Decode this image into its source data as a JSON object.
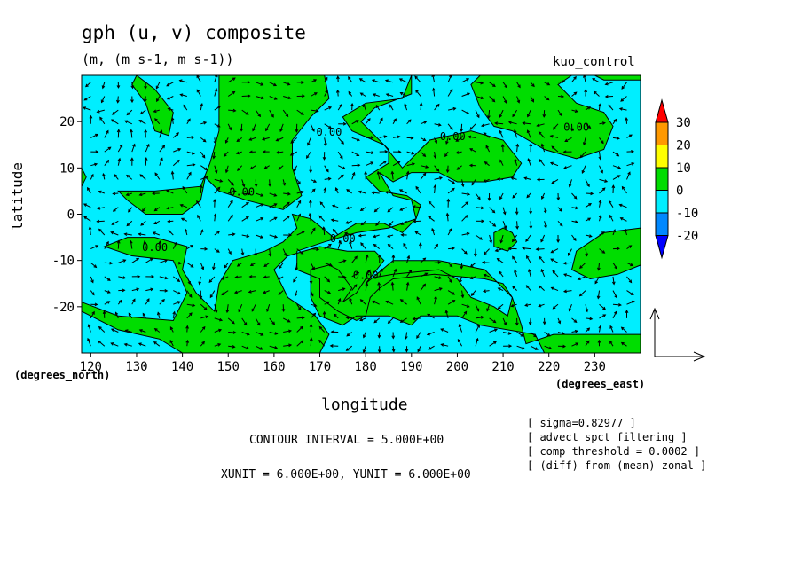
{
  "title": "gph (u, v) composite",
  "subtitle": "(m, (m s-1, m s-1))",
  "run_label": "kuo_control",
  "xlabel": "longitude",
  "ylabel": "latitude",
  "x_unit_label": "(degrees_east)",
  "y_unit_label": "(degrees_north)",
  "contour_interval": "CONTOUR INTERVAL = 5.000E+00",
  "vector_units": "XUNIT = 6.000E+00, YUNIT = 6.000E+00",
  "notes": [
    "[ sigma=0.82977 ]",
    "[ advect spct filtering ]",
    "[ comp threshold = 0.0002 ]",
    "[ (diff) from (mean) zonal ]"
  ],
  "colors": {
    "positive_0_10": "#00dd00",
    "negative_-10_0": "#00eeff",
    "negative_-20_-10": "#0088ff",
    "negative_below_-20": "#0000ff",
    "positive_10_20": "#ffff00",
    "positive_20_30": "#ff9900",
    "positive_above_30": "#ff0000"
  },
  "chart_data": {
    "type": "heatmap",
    "subtype": "filled contour with wind vectors",
    "xlim": [
      118,
      240
    ],
    "ylim": [
      -30,
      30
    ],
    "xticks": [
      120,
      130,
      140,
      150,
      160,
      170,
      180,
      190,
      200,
      210,
      220,
      230
    ],
    "yticks": [
      -20,
      -10,
      0,
      10,
      20
    ],
    "contour_levels": [
      -20,
      -10,
      0,
      10,
      20,
      30
    ],
    "contour_labels": [
      {
        "text": "0.00",
        "x": 172,
        "y": 17
      },
      {
        "text": "0.00",
        "x": 199,
        "y": 16
      },
      {
        "text": "0.00",
        "x": 226,
        "y": 18
      },
      {
        "text": "0.00",
        "x": 153,
        "y": 4
      },
      {
        "text": "0.00",
        "x": 134,
        "y": -8
      },
      {
        "text": "0.00",
        "x": 175,
        "y": -6
      },
      {
        "text": "0.00",
        "x": 180,
        "y": -14
      }
    ],
    "colorbar": {
      "labels": [
        "30",
        "20",
        "10",
        "0",
        "-10",
        "-20"
      ],
      "colors": [
        "#ff0000",
        "#ff9900",
        "#ffff00",
        "#00dd00",
        "#00eeff",
        "#0088ff",
        "#0000ff"
      ]
    },
    "positive_regions": [
      [
        [
          130,
          30
        ],
        [
          134,
          27
        ],
        [
          138,
          22
        ],
        [
          137,
          17
        ],
        [
          134,
          18
        ],
        [
          132,
          24
        ],
        [
          129,
          28
        ]
      ],
      [
        [
          118,
          10
        ],
        [
          119,
          8
        ],
        [
          118,
          6
        ]
      ],
      [
        [
          148,
          30
        ],
        [
          171,
          30
        ],
        [
          172,
          25
        ],
        [
          168,
          21
        ],
        [
          164,
          16
        ],
        [
          164,
          10
        ],
        [
          166,
          4
        ],
        [
          162,
          1
        ],
        [
          154,
          3
        ],
        [
          148,
          5
        ],
        [
          145,
          8
        ],
        [
          144,
          3
        ],
        [
          140,
          0
        ],
        [
          132,
          0
        ],
        [
          128,
          3
        ],
        [
          126,
          5
        ],
        [
          134,
          5
        ],
        [
          144,
          6
        ],
        [
          146,
          11
        ],
        [
          148,
          18
        ],
        [
          148,
          24
        ]
      ],
      [
        [
          171,
          30
        ],
        [
          190,
          30
        ],
        [
          188,
          25
        ],
        [
          180,
          24
        ],
        [
          175,
          21
        ],
        [
          177,
          18
        ],
        [
          184,
          15
        ],
        [
          188,
          10
        ],
        [
          194,
          16
        ],
        [
          203,
          18
        ],
        [
          210,
          16
        ],
        [
          214,
          11
        ],
        [
          212,
          8
        ],
        [
          206,
          7
        ],
        [
          200,
          7
        ],
        [
          196,
          9
        ],
        [
          190,
          9
        ],
        [
          186,
          7
        ],
        [
          183,
          9
        ],
        [
          186,
          4
        ],
        [
          190,
          3
        ],
        [
          191,
          -1
        ],
        [
          188,
          -4
        ],
        [
          184,
          -2
        ],
        [
          178,
          -2
        ],
        [
          173,
          -5
        ],
        [
          168,
          -1
        ],
        [
          164,
          0
        ],
        [
          165,
          -3
        ],
        [
          162,
          -6
        ],
        [
          158,
          -8
        ],
        [
          151,
          -10
        ],
        [
          148,
          -15
        ],
        [
          147,
          -21
        ],
        [
          143,
          -17
        ],
        [
          140,
          -12
        ],
        [
          141,
          -7
        ],
        [
          134,
          -5
        ],
        [
          128,
          -5
        ],
        [
          123,
          -7
        ],
        [
          129,
          -9
        ],
        [
          138,
          -10
        ],
        [
          141,
          -17
        ],
        [
          138,
          -23
        ],
        [
          126,
          -22
        ],
        [
          118,
          -19
        ],
        [
          118,
          -21
        ],
        [
          126,
          -25
        ],
        [
          135,
          -27
        ],
        [
          140,
          -30
        ],
        [
          170,
          -30
        ],
        [
          172,
          -26
        ],
        [
          169,
          -22
        ],
        [
          163,
          -18
        ],
        [
          160,
          -12
        ],
        [
          163,
          -9
        ],
        [
          170,
          -7
        ],
        [
          176,
          -8
        ],
        [
          182,
          -8
        ],
        [
          184,
          -10
        ],
        [
          180,
          -15
        ],
        [
          186,
          -10
        ],
        [
          196,
          -10
        ],
        [
          206,
          -12
        ],
        [
          212,
          -18
        ],
        [
          214,
          -24
        ],
        [
          215,
          -28
        ],
        [
          221,
          -26
        ],
        [
          225,
          -26
        ],
        [
          240,
          -26
        ],
        [
          240,
          -30
        ],
        [
          219,
          -30
        ],
        [
          217,
          -26
        ],
        [
          205,
          -24
        ],
        [
          200,
          -22
        ],
        [
          192,
          -22
        ],
        [
          190,
          -24
        ],
        [
          185,
          -22
        ],
        [
          178,
          -22
        ],
        [
          175,
          -24
        ],
        [
          170,
          -22
        ],
        [
          168,
          -18
        ],
        [
          168,
          -12
        ],
        [
          172,
          -11
        ],
        [
          174,
          -12
        ],
        [
          177,
          -16
        ],
        [
          175,
          -19
        ],
        [
          178,
          -17
        ],
        [
          180,
          -14
        ],
        [
          186,
          -13
        ],
        [
          196,
          -12
        ],
        [
          200,
          -14
        ],
        [
          203,
          -18
        ],
        [
          208,
          -20
        ],
        [
          211,
          -22
        ],
        [
          212,
          -18
        ],
        [
          210,
          -15
        ],
        [
          206,
          -14
        ],
        [
          195,
          -13
        ],
        [
          186,
          -14
        ],
        [
          183,
          -16
        ],
        [
          181,
          -18
        ],
        [
          180,
          -22
        ],
        [
          178,
          -23
        ],
        [
          174,
          -21
        ],
        [
          170,
          -18
        ],
        [
          170,
          -14
        ],
        [
          165,
          -12
        ],
        [
          165,
          -8
        ],
        [
          171,
          -6
        ],
        [
          178,
          -4
        ],
        [
          185,
          -3
        ],
        [
          191,
          -1
        ],
        [
          192,
          2
        ],
        [
          189,
          4
        ],
        [
          183,
          5
        ],
        [
          180,
          8
        ],
        [
          185,
          11
        ],
        [
          185,
          14
        ],
        [
          182,
          17
        ],
        [
          179,
          20
        ],
        [
          182,
          23
        ],
        [
          190,
          26
        ],
        [
          190,
          30
        ]
      ],
      [
        [
          205,
          30
        ],
        [
          230,
          30
        ],
        [
          232,
          29
        ],
        [
          240,
          29
        ],
        [
          240,
          30
        ],
        [
          225,
          30
        ],
        [
          222,
          28
        ],
        [
          226,
          24
        ],
        [
          232,
          22
        ],
        [
          234,
          19
        ],
        [
          232,
          14
        ],
        [
          226,
          12
        ],
        [
          219,
          14
        ],
        [
          212,
          18
        ],
        [
          208,
          19
        ],
        [
          205,
          23
        ],
        [
          203,
          28
        ]
      ],
      [
        [
          210,
          -3
        ],
        [
          212,
          -4
        ],
        [
          213,
          -6
        ],
        [
          211,
          -8
        ],
        [
          208,
          -7
        ],
        [
          208,
          -4
        ]
      ],
      [
        [
          240,
          -3
        ],
        [
          232,
          -4
        ],
        [
          226,
          -8
        ],
        [
          225,
          -12
        ],
        [
          229,
          -14
        ],
        [
          235,
          -13
        ],
        [
          240,
          -11
        ]
      ]
    ],
    "vectors": {
      "grid_dlon": 3,
      "grid_dlat": 3,
      "arrow_style": "small black arrows",
      "reference_vector": "shown at lower right"
    }
  }
}
